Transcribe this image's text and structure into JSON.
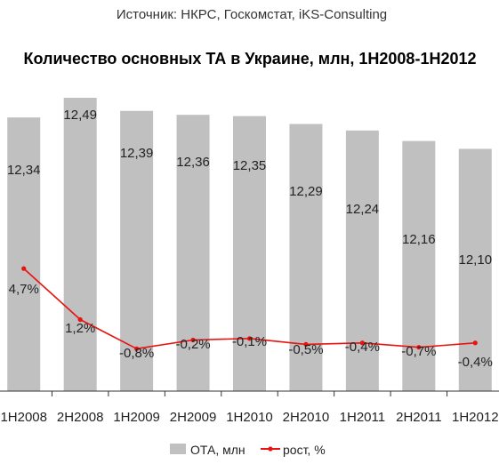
{
  "source": "Источник: НКРС, Госкомстат, iKS-Consulting",
  "chart_data": {
    "type": "bar",
    "title": "Количество основных ТА в Украине, млн, 1H2008-1H2012",
    "categories": [
      "1H2008",
      "2H2008",
      "1H2009",
      "2H2009",
      "1H2010",
      "2H2010",
      "1H2011",
      "2H2011",
      "1H2012"
    ],
    "series": [
      {
        "name": "ОТА, млн",
        "type": "bar",
        "color": "#c0c0c0",
        "values": [
          12.34,
          12.49,
          12.39,
          12.36,
          12.35,
          12.29,
          12.24,
          12.16,
          12.1
        ],
        "labels": [
          "12,34",
          "12,49",
          "12,39",
          "12,36",
          "12,35",
          "12,29",
          "12,24",
          "12,16",
          "12,10"
        ]
      },
      {
        "name": "рост, %",
        "type": "line",
        "color": "#e8130f",
        "values": [
          4.7,
          1.2,
          -0.8,
          -0.2,
          -0.1,
          -0.5,
          -0.4,
          -0.7,
          -0.4
        ],
        "labels": [
          "4,7%",
          "1,2%",
          "-0,8%",
          "-0,2%",
          "-0,1%",
          "-0,5%",
          "-0,4%",
          "-0,7%",
          "-0,4%"
        ]
      }
    ],
    "legend": "bottom",
    "grid": false
  }
}
